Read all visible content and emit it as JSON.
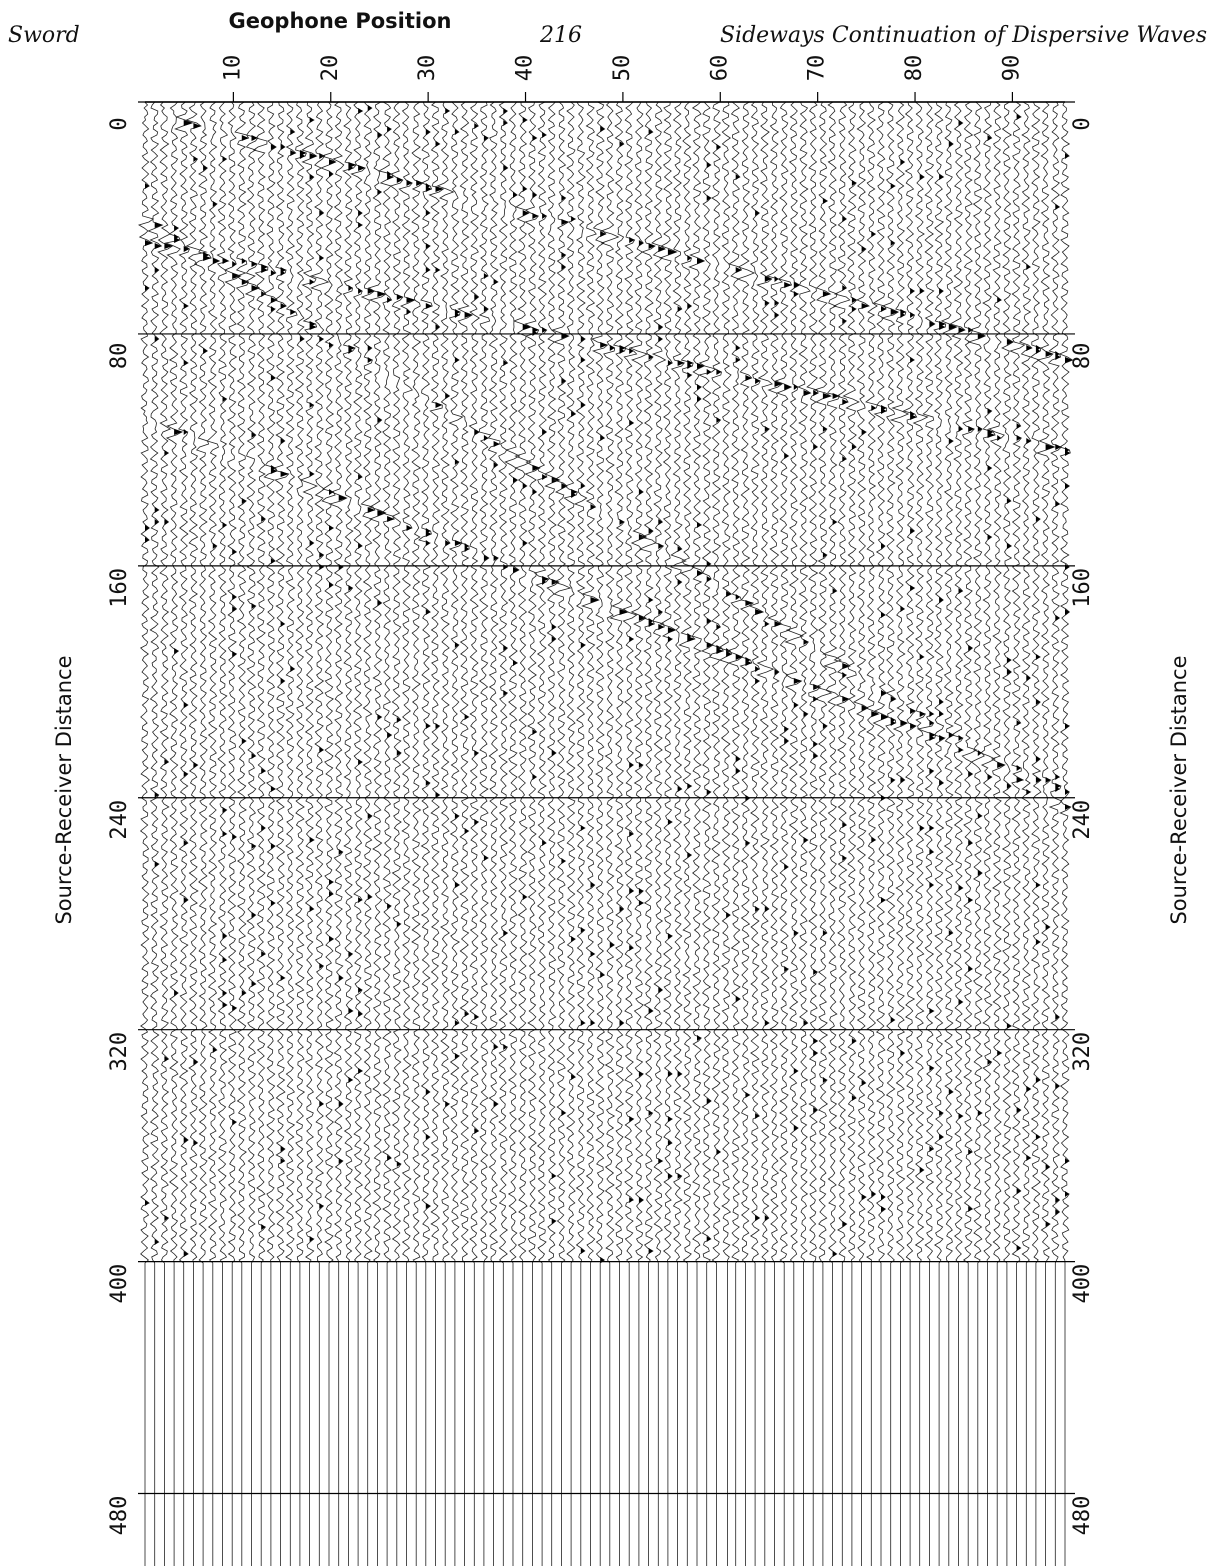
{
  "header": {
    "author": "Sword",
    "page_number": "216",
    "running_title": "Sideways Continuation of Dispersive Waves"
  },
  "figure": {
    "x_axis": {
      "label": "Geophone Position",
      "lim": [
        0,
        95.4
      ],
      "ticks": [
        10,
        20,
        30,
        40,
        50,
        60,
        70,
        80,
        90
      ]
    },
    "y_axis": {
      "label": "Source-Receiver Distance",
      "lim": [
        0,
        505
      ],
      "ticks": [
        0,
        80,
        160,
        240,
        320,
        400,
        480
      ]
    },
    "right_axis_label": "Source-Receiver Distance"
  }
}
